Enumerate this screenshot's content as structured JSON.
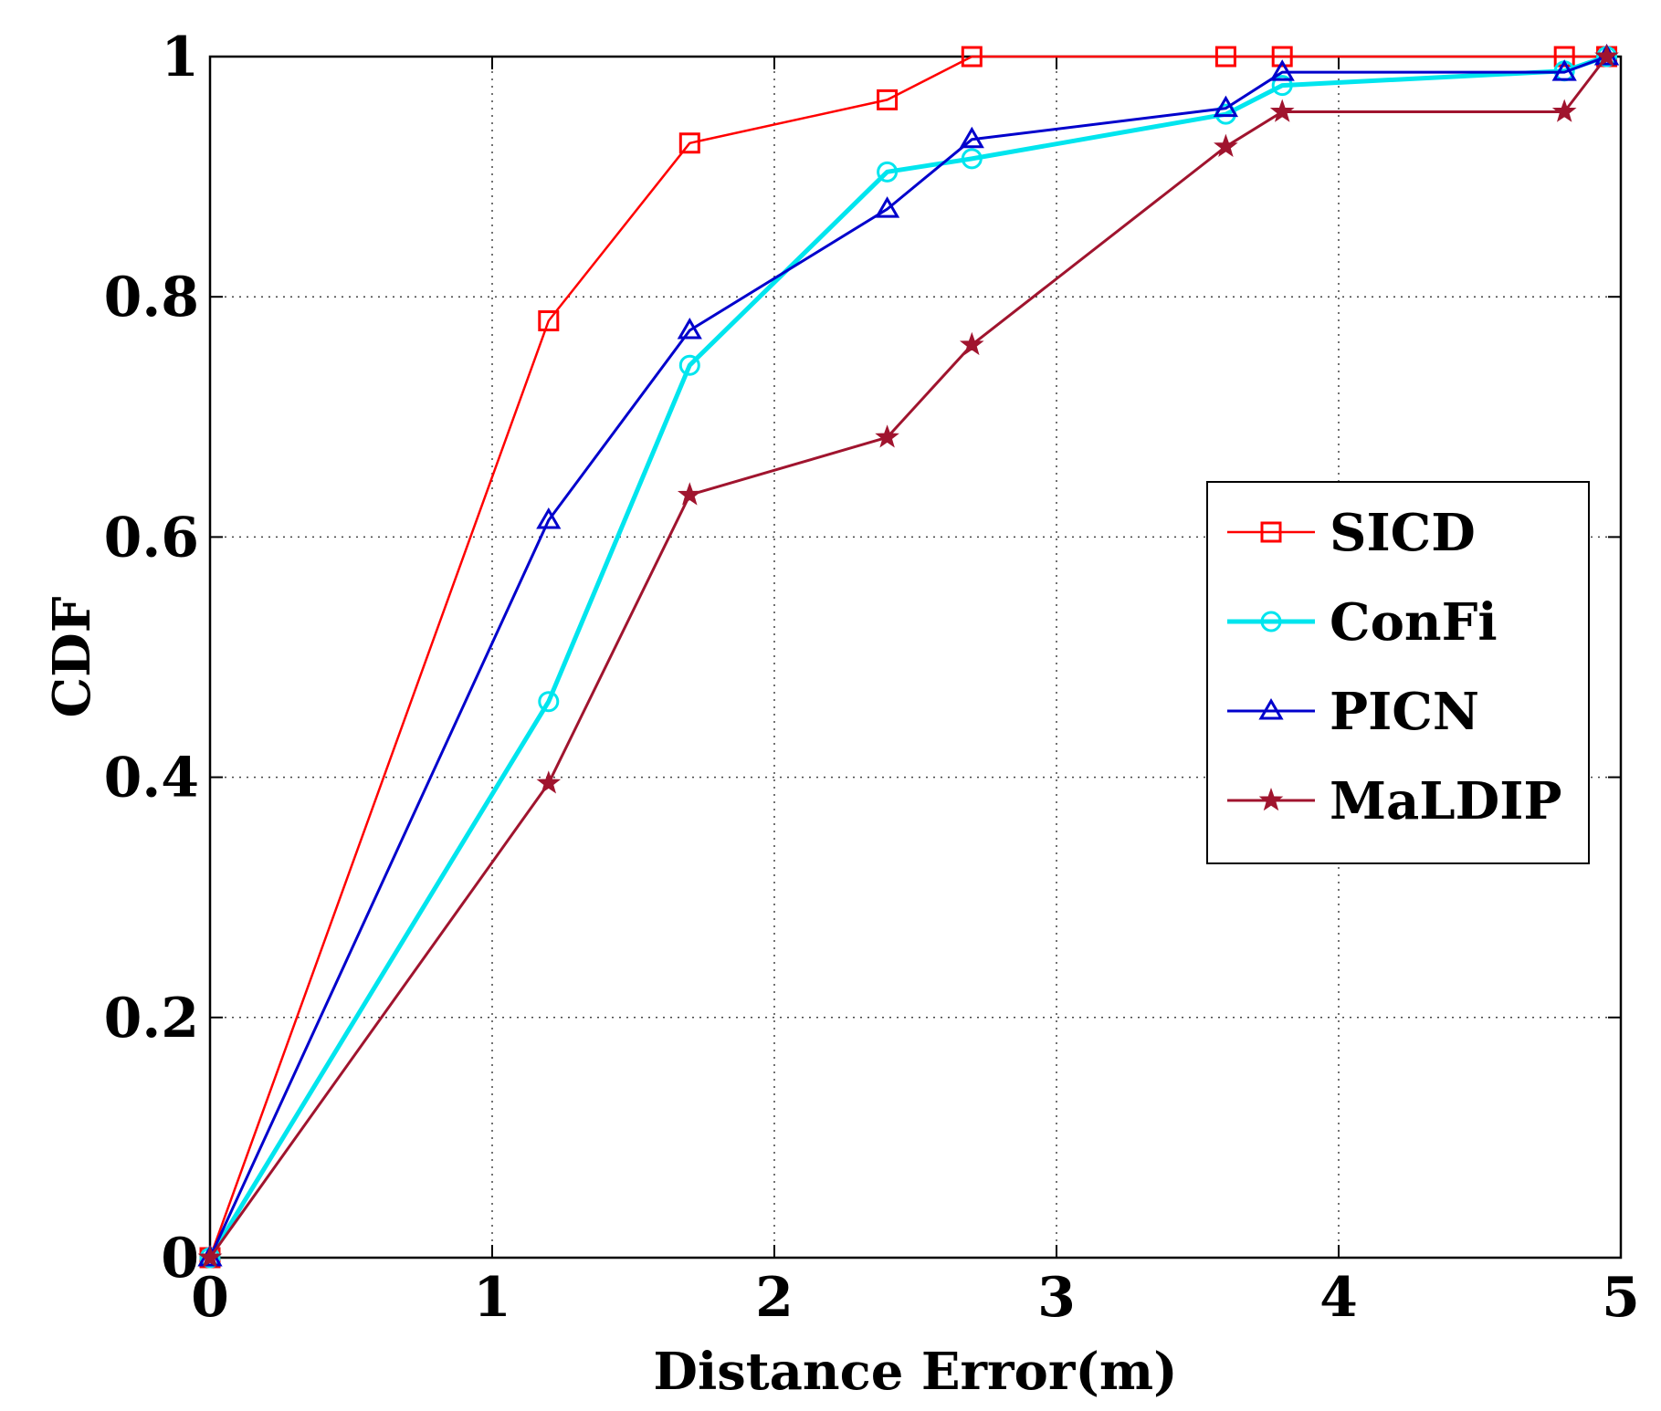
{
  "chart_data": {
    "type": "line",
    "title": "",
    "xlabel": "Distance Error(m)",
    "ylabel": "CDF",
    "xlim": [
      0,
      5
    ],
    "ylim": [
      0,
      1
    ],
    "xticks": [
      0,
      1,
      2,
      3,
      4,
      5
    ],
    "xtick_labels": [
      "0",
      "1",
      "2",
      "3",
      "4",
      "5"
    ],
    "yticks": [
      0,
      0.2,
      0.4,
      0.6,
      0.8,
      1
    ],
    "ytick_labels": [
      "0",
      "0.2",
      "0.4",
      "0.6",
      "0.8",
      "1"
    ],
    "grid": true,
    "legend_position": "center-right",
    "series": [
      {
        "name": "SICD",
        "color": "#ff0000",
        "marker": "square",
        "x": [
          0,
          1.2,
          1.7,
          2.4,
          2.7,
          3.6,
          3.8,
          4.8,
          4.95
        ],
        "y": [
          0,
          0.78,
          0.928,
          0.964,
          1.0,
          1.0,
          1.0,
          1.0,
          1.0
        ]
      },
      {
        "name": "ConFi",
        "color": "#00e5ee",
        "marker": "circle",
        "x": [
          0,
          1.2,
          1.7,
          2.4,
          2.7,
          3.6,
          3.8,
          4.8,
          4.95
        ],
        "y": [
          0,
          0.463,
          0.743,
          0.904,
          0.915,
          0.952,
          0.976,
          0.988,
          1.0
        ]
      },
      {
        "name": "PICN",
        "color": "#0000cc",
        "marker": "triangle",
        "x": [
          0,
          1.2,
          1.7,
          2.4,
          2.7,
          3.6,
          3.8,
          4.8,
          4.95
        ],
        "y": [
          0,
          0.614,
          0.772,
          0.873,
          0.931,
          0.957,
          0.987,
          0.987,
          1.0
        ]
      },
      {
        "name": "MaLDIP",
        "color": "#a0142e",
        "marker": "star",
        "x": [
          0,
          1.2,
          1.7,
          2.4,
          2.7,
          3.6,
          3.8,
          4.8,
          4.95
        ],
        "y": [
          0,
          0.395,
          0.635,
          0.683,
          0.76,
          0.925,
          0.954,
          0.954,
          1.0
        ]
      }
    ]
  }
}
